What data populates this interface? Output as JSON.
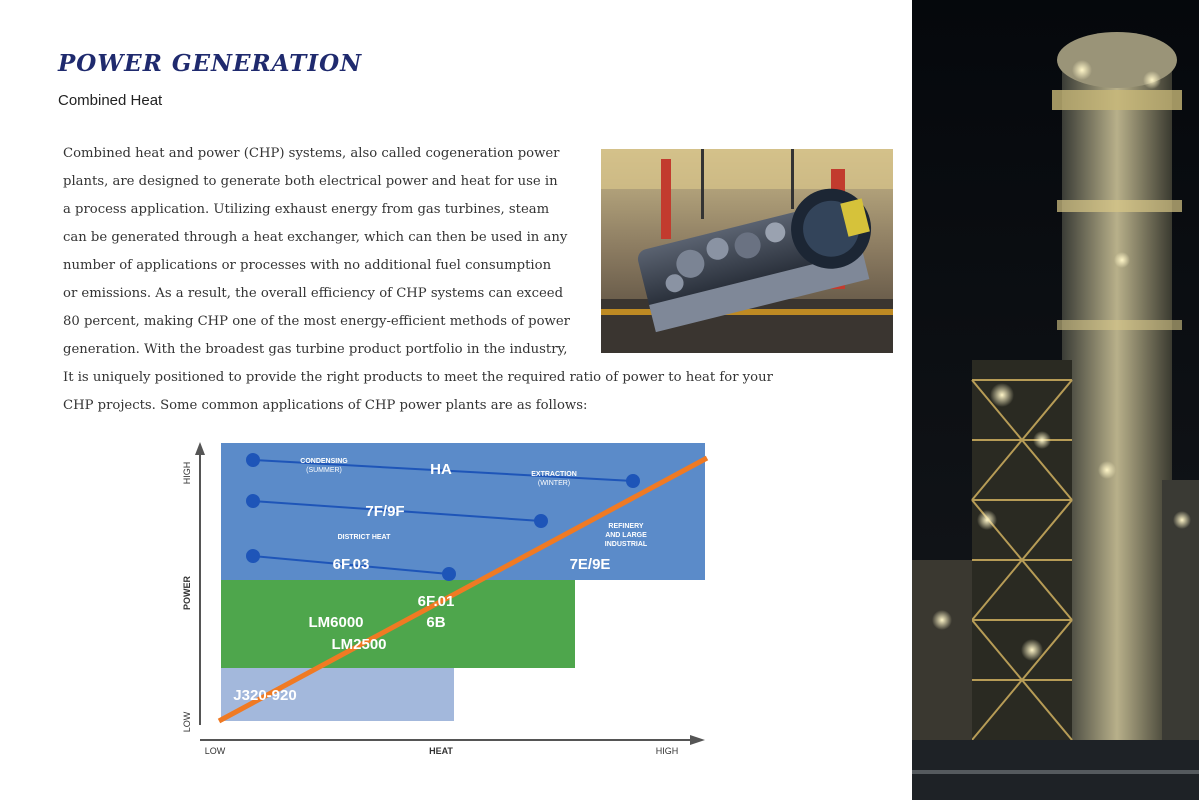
{
  "header": {
    "title": "POWER GENERATION",
    "subtitle": "Combined Heat"
  },
  "body": {
    "lines": [
      "Combined heat and power (CHP) systems, also called cogeneration power",
      "plants, are designed to generate both electrical power and heat for use in",
      "a process application. Utilizing exhaust energy from gas turbines, steam",
      "can be generated through a heat exchanger, which can then be used in any",
      "number of applications or processes with no additional fuel consumption",
      "or emissions. As a result, the overall efficiency of CHP systems can exceed",
      "80 percent, making CHP one of the most energy-efficient methods of power",
      "generation. With the broadest gas turbine product portfolio in the industry,",
      "It is uniquely positioned to provide the right products to meet the required ratio of power to heat for your",
      "CHP projects. Some common applications of CHP power plants are as follows:"
    ]
  },
  "chart_data": {
    "type": "diagram",
    "x_axis": {
      "ticks": [
        "LOW",
        "HEAT",
        "HIGH"
      ]
    },
    "y_axis": {
      "ticks": [
        "LOW",
        "POWER",
        "HIGH"
      ]
    },
    "regions": [
      {
        "name": "blue",
        "color": "#5b8bc9",
        "labels": [
          "HA",
          "7F/9F",
          "6F.03",
          "7E/9E"
        ]
      },
      {
        "name": "green",
        "color": "#4ea64c",
        "labels": [
          "6F.01",
          "LM6000",
          "6B",
          "LM2500"
        ]
      },
      {
        "name": "light",
        "color": "#a3b8dc",
        "labels": [
          "J320-920"
        ]
      }
    ],
    "annotations": {
      "condensing": "CONDENSING",
      "condensing_sub": "(SUMMER)",
      "extraction": "EXTRACTION",
      "extraction_sub": "(WINTER)",
      "district_heat": "DISTRICT HEAT",
      "refinery": [
        "REFINERY",
        "AND LARGE",
        "INDUSTRIAL"
      ]
    },
    "trend_line_color": "#f07a23",
    "curve_color": "#1e55b8"
  },
  "colors": {
    "title": "#1f2a6e"
  }
}
